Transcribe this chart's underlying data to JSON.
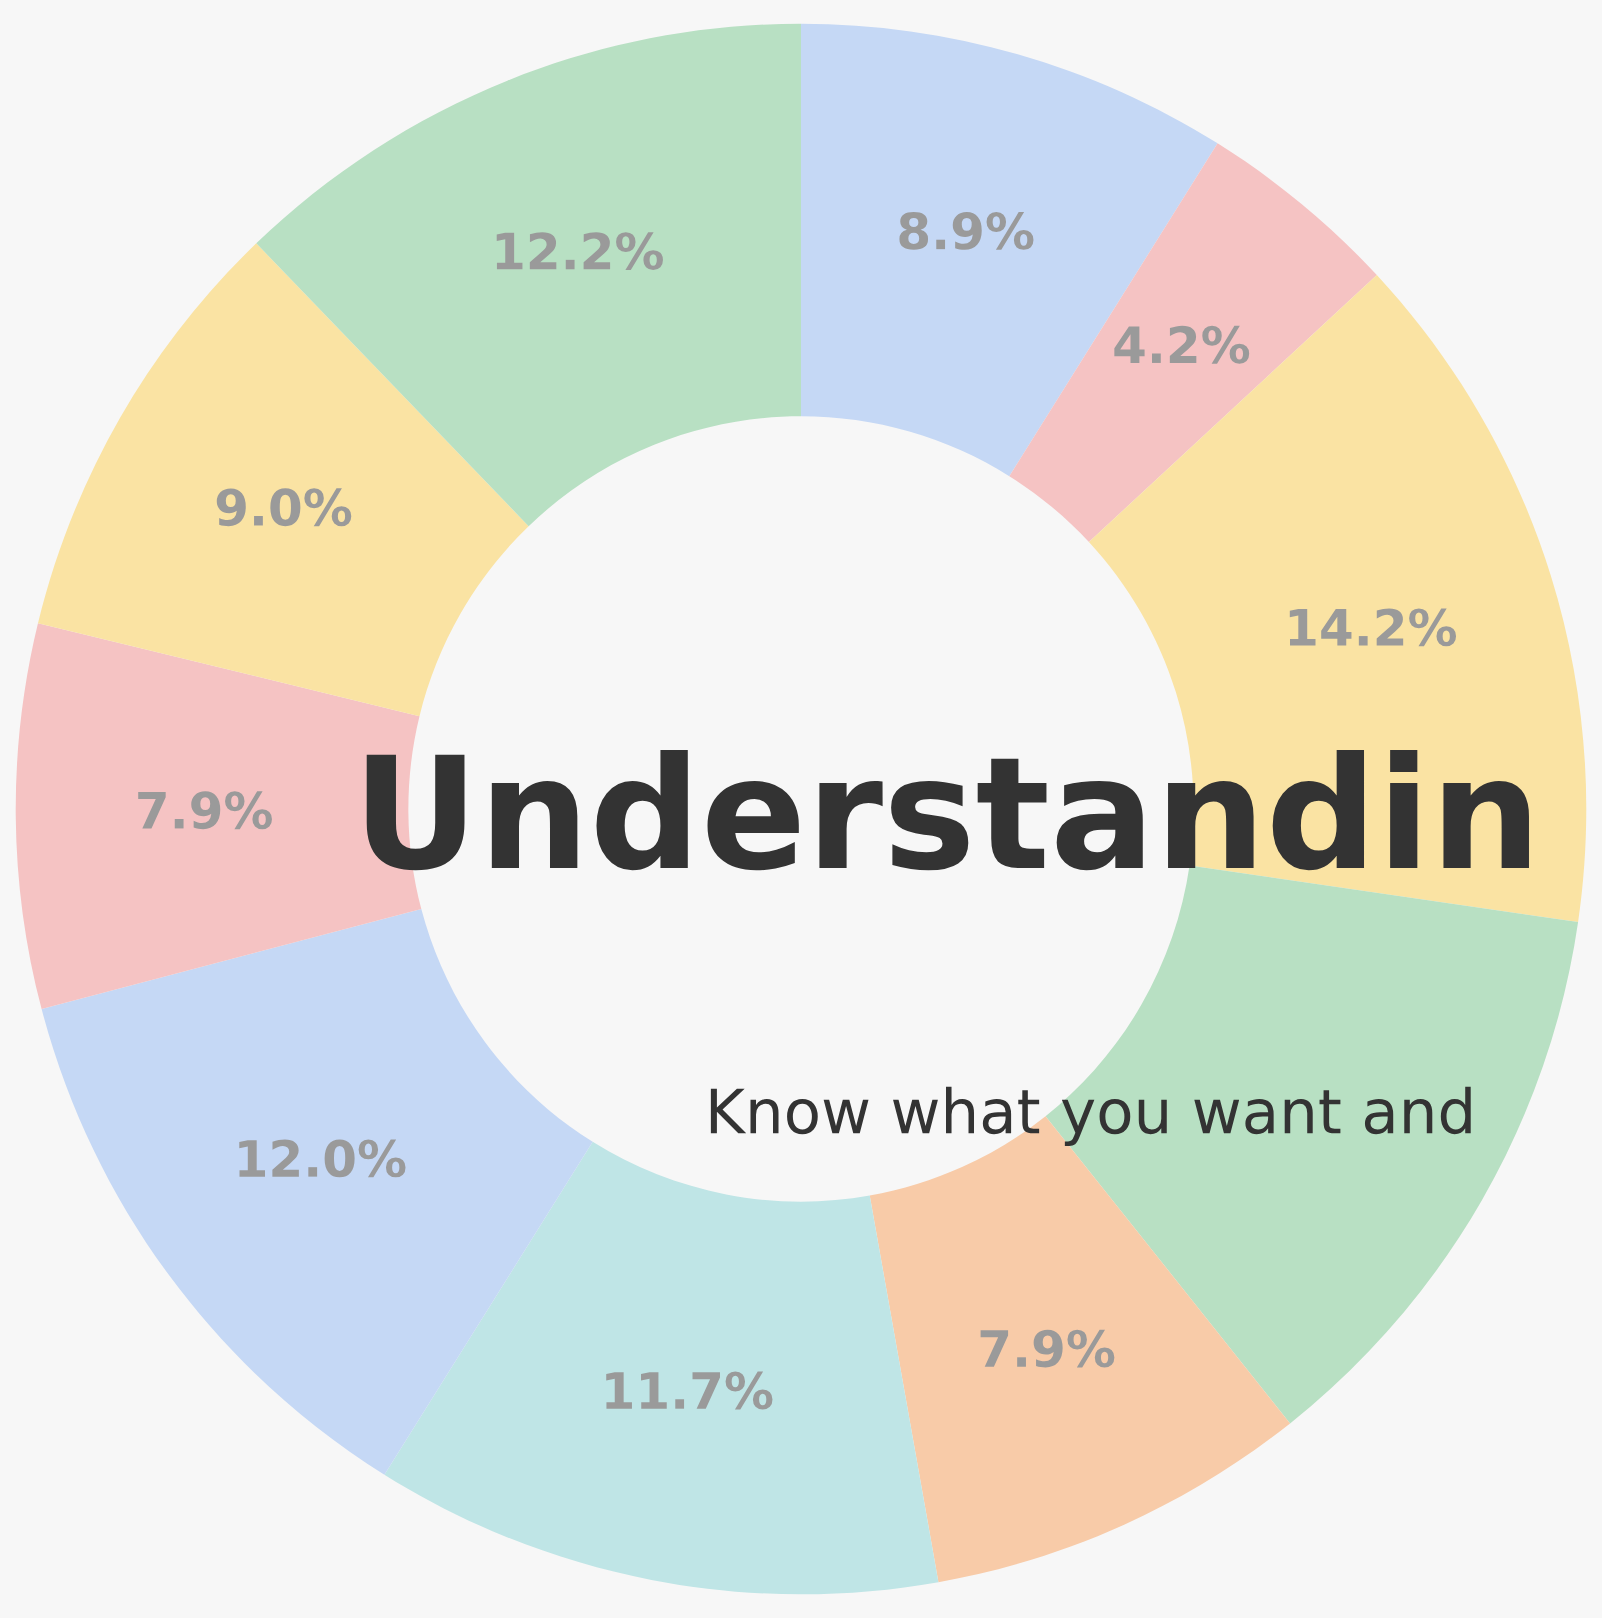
{
  "chart_data": {
    "type": "donut",
    "title": "Understandin",
    "subtitle": "Know what you want and",
    "categories": [
      null,
      null,
      null,
      null,
      null,
      null,
      null,
      null,
      null,
      null
    ],
    "values": [
      8.9,
      4.2,
      14.2,
      12.0,
      7.9,
      11.7,
      12.0,
      7.9,
      9.0,
      12.2
    ],
    "colors": [
      "#c5d8f5",
      "#f5c3c3",
      "#fae3a3",
      "#b8e0c3",
      "#f8cba8",
      "#bfe5e6",
      "#c5d8f5",
      "#f5c3c3",
      "#fae3a3",
      "#b8e0c3"
    ],
    "value_labels": [
      "8.9%",
      "4.2%",
      "14.2%",
      null,
      "7.9%",
      "11.7%",
      "12.0%",
      "7.9%",
      "9.0%",
      "12.2%"
    ],
    "legend": false
  }
}
